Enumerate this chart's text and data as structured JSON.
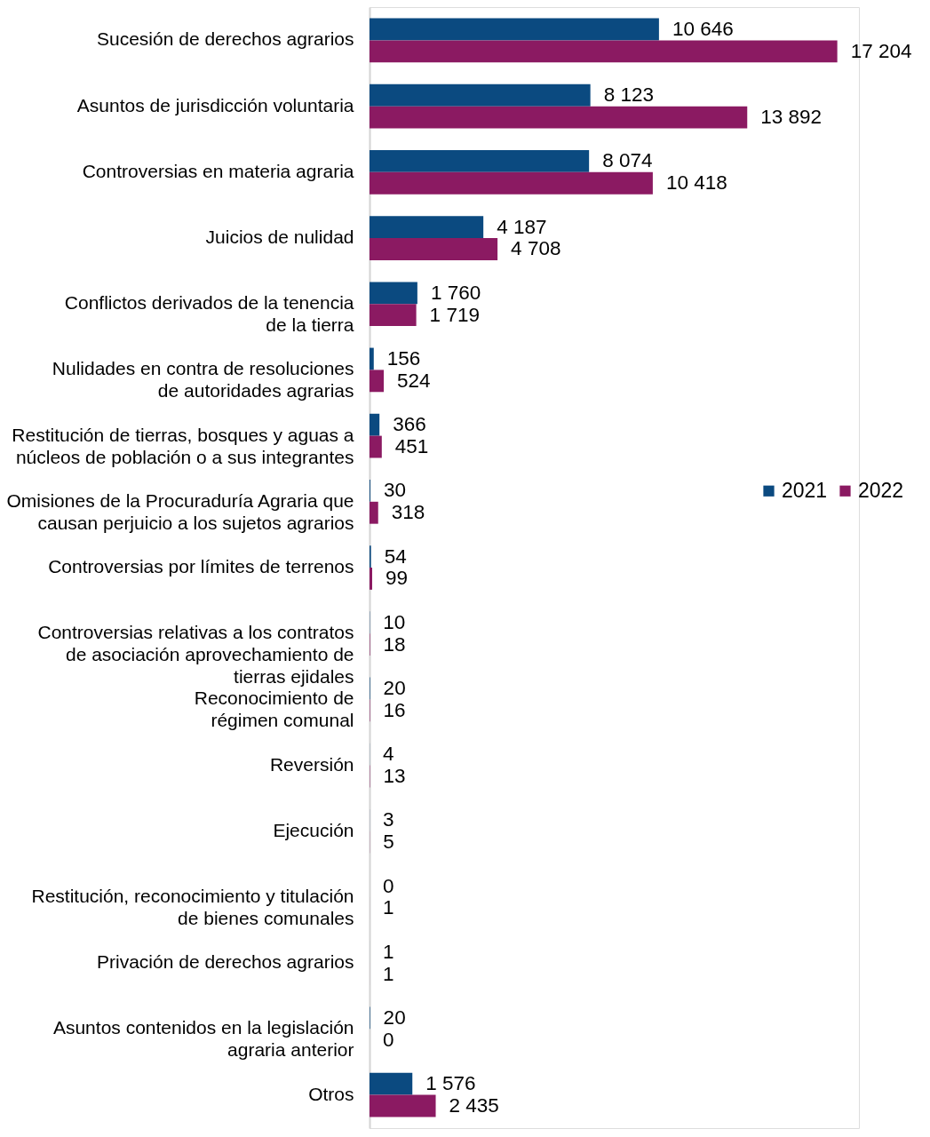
{
  "chart_data": {
    "type": "bar",
    "orientation": "horizontal",
    "categories": [
      "Sucesión de derechos agrarios",
      "Asuntos de jurisdicción voluntaria",
      "Controversias en materia agraria",
      "Juicios de nulidad",
      "Conflictos derivados de la tenencia\nde la tierra",
      "Nulidades en contra de resoluciones\nde autoridades agrarias",
      "Restitución de tierras, bosques y aguas a\nnúcleos de población o a sus integrantes",
      "Omisiones de la Procuraduría Agraria que\ncausan perjuicio a los sujetos agrarios",
      "Controversias por límites de terrenos",
      "Controversias relativas a los contratos\nde asociación aprovechamiento de\ntierras ejidales",
      "Reconocimiento de\nrégimen comunal",
      "Reversión",
      "Ejecución",
      "Restitución, reconocimiento y titulación\nde bienes comunales",
      "Privación de derechos agrarios",
      "Asuntos contenidos en la legislación\nagraria anterior",
      "Otros"
    ],
    "series": [
      {
        "name": "2021",
        "color": "#0b4a80",
        "values": [
          10646,
          8123,
          8074,
          4187,
          1760,
          156,
          366,
          30,
          54,
          10,
          20,
          4,
          3,
          0,
          1,
          20,
          1576
        ],
        "value_labels": [
          "10 646",
          "8 123",
          "8 074",
          "4 187",
          "1 760",
          "156",
          "366",
          "30",
          "54",
          "10",
          "20",
          "4",
          "3",
          "0",
          "1",
          "20",
          "1 576"
        ]
      },
      {
        "name": "2022",
        "color": "#8b1a62",
        "values": [
          17204,
          13892,
          10418,
          4708,
          1719,
          524,
          451,
          318,
          99,
          18,
          16,
          13,
          5,
          1,
          1,
          0,
          2435
        ],
        "value_labels": [
          "17 204",
          "13 892",
          "10 418",
          "4 708",
          "1 719",
          "524",
          "451",
          "318",
          "99",
          "18",
          "16",
          "13",
          "5",
          "1",
          "1",
          "0",
          "2 435"
        ]
      }
    ],
    "xlim": [
      0,
      18000
    ],
    "tick_labels": "y",
    "legend": "right"
  }
}
